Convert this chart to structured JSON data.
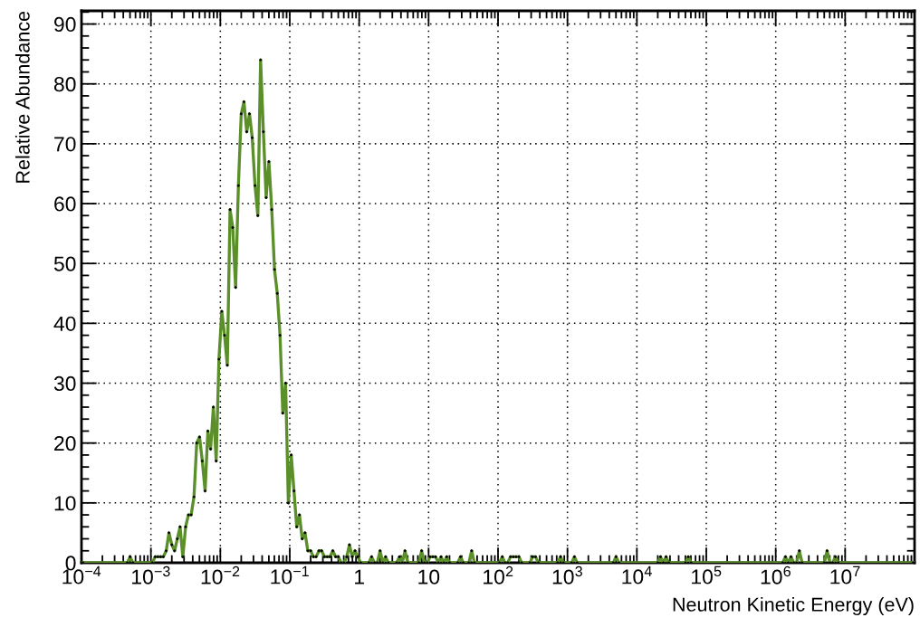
{
  "chart_data": {
    "type": "line",
    "xlabel": "Neutron Kinetic Energy (eV)",
    "ylabel": "Relative Abundance",
    "log": "x",
    "xlim": [
      0.0001,
      100000000.0
    ],
    "ylim": [
      0,
      92.2
    ],
    "xticks": [
      {
        "value": 0.0001,
        "label": "10$^{−4}$"
      },
      {
        "value": 0.001,
        "label": "10$^{−3}$"
      },
      {
        "value": 0.01,
        "label": "10$^{−2}$"
      },
      {
        "value": 0.1,
        "label": "10$^{−1}$"
      },
      1,
      10,
      {
        "value": 100.0,
        "label": "10$^{2}$"
      },
      {
        "value": 1000.0,
        "label": "10$^{3}$"
      },
      {
        "value": 10000.0,
        "label": "10$^{4}$"
      },
      {
        "value": 100000.0,
        "label": "10$^{5}$"
      },
      {
        "value": 1000000.0,
        "label": "10$^{6}$"
      },
      {
        "value": 10000000.0,
        "label": "10$^{7}$"
      }
    ],
    "yticks": [
      0,
      10,
      20,
      30,
      40,
      50,
      60,
      70,
      80,
      90
    ],
    "grid": true,
    "marker": "circle",
    "series": [
      {
        "color": "#5b8f2a",
        "x": [
          0.000105,
          0.000457,
          0.000501,
          0.00055,
          0.00105,
          0.00115,
          0.00126,
          0.00138,
          0.00151,
          0.00166,
          0.00182,
          0.002,
          0.00219,
          0.0024,
          0.00263,
          0.00288,
          0.00316,
          0.00347,
          0.0038,
          0.00417,
          0.00457,
          0.00501,
          0.0055,
          0.00603,
          0.00661,
          0.00724,
          0.00794,
          0.00871,
          0.00955,
          0.0105,
          0.0115,
          0.0126,
          0.0138,
          0.0151,
          0.0166,
          0.0182,
          0.02,
          0.0219,
          0.024,
          0.0263,
          0.0288,
          0.0316,
          0.0347,
          0.038,
          0.0417,
          0.0457,
          0.0501,
          0.055,
          0.0603,
          0.0661,
          0.0724,
          0.0794,
          0.0871,
          0.0955,
          0.105,
          0.115,
          0.126,
          0.138,
          0.151,
          0.166,
          0.182,
          0.2,
          0.219,
          0.24,
          0.263,
          0.288,
          0.316,
          0.347,
          0.38,
          0.417,
          0.457,
          0.501,
          0.55,
          0.603,
          0.661,
          0.724,
          0.794,
          0.871,
          0.955,
          1.05,
          1.38,
          1.51,
          1.66,
          1.82,
          2.0,
          2.19,
          2.4,
          2.63,
          3.47,
          3.8,
          4.17,
          4.57,
          5.01,
          7.24,
          7.94,
          8.71,
          9.55,
          10.5,
          11.5,
          12.6,
          13.8,
          15.1,
          16.6,
          18.2,
          20.0,
          26.3,
          28.8,
          31.6,
          38.0,
          41.7,
          45.7,
          105,
          115,
          126,
          138,
          151,
          166,
          182,
          200,
          219,
          288,
          316,
          347,
          380,
          724,
          794,
          871,
          1150.0,
          1260.0,
          1380.0,
          4570.0,
          5010.0,
          5500.0,
          20000.0,
          21900.0,
          24000.0,
          26300.0,
          28800.0,
          50100.0,
          55000.0,
          60300.0,
          1260000.0,
          1380000.0,
          1510000.0,
          1660000.0,
          1820000.0,
          2000000.0,
          2190000.0,
          2400000.0,
          5010000.0,
          5500000.0,
          6030000.0,
          6610000.0,
          7240000.0,
          7940000.0,
          95500000.0
        ],
        "values": [
          0,
          0,
          1,
          0,
          0,
          1,
          1,
          1,
          1,
          2,
          5,
          3,
          2,
          4,
          6,
          1,
          6,
          8,
          8,
          11,
          20,
          21,
          17,
          12,
          22,
          19,
          26,
          17,
          34,
          42,
          38,
          33,
          59,
          56,
          46,
          63,
          75,
          77,
          72,
          75,
          71,
          63,
          58,
          84,
          72,
          61,
          67,
          59,
          49,
          45,
          38,
          25,
          30,
          10,
          18,
          12,
          6,
          8,
          4,
          5,
          2,
          2,
          1,
          1,
          2,
          2,
          1,
          1,
          1,
          2,
          1,
          1,
          0,
          0,
          1,
          3,
          1,
          2,
          1,
          0,
          0,
          1,
          0,
          0,
          2,
          0,
          1,
          0,
          0,
          1,
          0,
          2,
          0,
          0,
          2,
          0,
          0,
          1,
          1,
          1,
          0,
          1,
          0,
          1,
          0,
          0,
          1,
          0,
          0,
          2,
          0,
          0,
          1,
          0,
          0,
          1,
          1,
          1,
          1,
          0,
          0,
          1,
          1,
          0,
          0,
          1,
          0,
          0,
          1,
          0,
          0,
          1,
          0,
          0,
          1,
          0,
          1,
          0,
          0,
          1,
          0,
          0,
          1,
          0,
          1,
          0,
          0,
          2,
          0,
          0,
          2,
          0,
          0,
          1,
          0,
          0
        ]
      }
    ]
  }
}
